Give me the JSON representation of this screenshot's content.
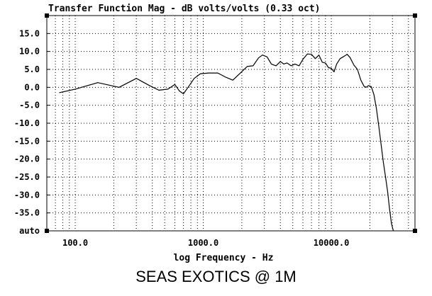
{
  "caption": "SEAS EXOTICS @ 1M",
  "colors": {
    "line": "#000000",
    "grid": "#000000",
    "background": "#ffffff"
  },
  "chart_data": {
    "type": "line",
    "title": "Transfer Function Mag - dB volts/volts (0.33 oct)",
    "xlabel": "log Frequency - Hz",
    "ylabel": "",
    "x_scale": "log",
    "xlim": [
      60,
      45000
    ],
    "ylim": [
      -40,
      20
    ],
    "grid": true,
    "x_tick_labels": [
      {
        "value": 100,
        "label": "100.0"
      },
      {
        "value": 1000,
        "label": "1000.0"
      },
      {
        "value": 10000,
        "label": "10000.0"
      }
    ],
    "y_tick_labels": [
      {
        "value": 15,
        "label": "15.0"
      },
      {
        "value": 10,
        "label": "10.0"
      },
      {
        "value": 5,
        "label": "5.0"
      },
      {
        "value": 0,
        "label": "0.0"
      },
      {
        "value": -5,
        "label": "-5.0"
      },
      {
        "value": -10,
        "label": "-10.0"
      },
      {
        "value": -15,
        "label": "-15.0"
      },
      {
        "value": -20,
        "label": "-20.0"
      },
      {
        "value": -25,
        "label": "-25.0"
      },
      {
        "value": -30,
        "label": "-30.0"
      },
      {
        "value": -35,
        "label": "-35.0"
      },
      {
        "value": -40,
        "label": "auto"
      }
    ],
    "series": [
      {
        "x": [
          75,
          100,
          150,
          220,
          300,
          380,
          450,
          530,
          600,
          650,
          700,
          760,
          850,
          950,
          1100,
          1300,
          1500,
          1700,
          1950,
          2200,
          2450,
          2700,
          2900,
          3150,
          3400,
          3700,
          4000,
          4250,
          4500,
          4850,
          5200,
          5600,
          6000,
          6500,
          7000,
          7500,
          8000,
          8500,
          9000,
          9500,
          10000,
          10500,
          11000,
          11700,
          12500,
          13300,
          14000,
          15000,
          16000,
          17000,
          18000,
          18700,
          19500,
          20500,
          21500,
          22500,
          23500,
          24500,
          25500,
          26500,
          27500,
          28500,
          29500,
          30500
        ],
        "y": [
          -1.5,
          -0.5,
          1.3,
          0.0,
          2.5,
          0.5,
          -0.8,
          -0.5,
          0.8,
          -1.0,
          -1.8,
          0.0,
          2.5,
          3.8,
          4.0,
          4.0,
          2.8,
          2.0,
          4.0,
          5.8,
          6.0,
          8.2,
          9.0,
          8.5,
          6.5,
          6.0,
          7.2,
          6.5,
          6.8,
          6.0,
          6.5,
          6.0,
          7.8,
          9.3,
          9.2,
          8.0,
          9.0,
          7.0,
          6.8,
          5.5,
          5.3,
          4.3,
          6.5,
          8.0,
          8.6,
          9.2,
          8.3,
          6.2,
          5.0,
          2.0,
          0.3,
          0.0,
          0.5,
          0.2,
          -2.0,
          -6.0,
          -11.0,
          -16.0,
          -21.0,
          -25.0,
          -29.0,
          -34.0,
          -38.0,
          -40.0
        ]
      }
    ]
  }
}
